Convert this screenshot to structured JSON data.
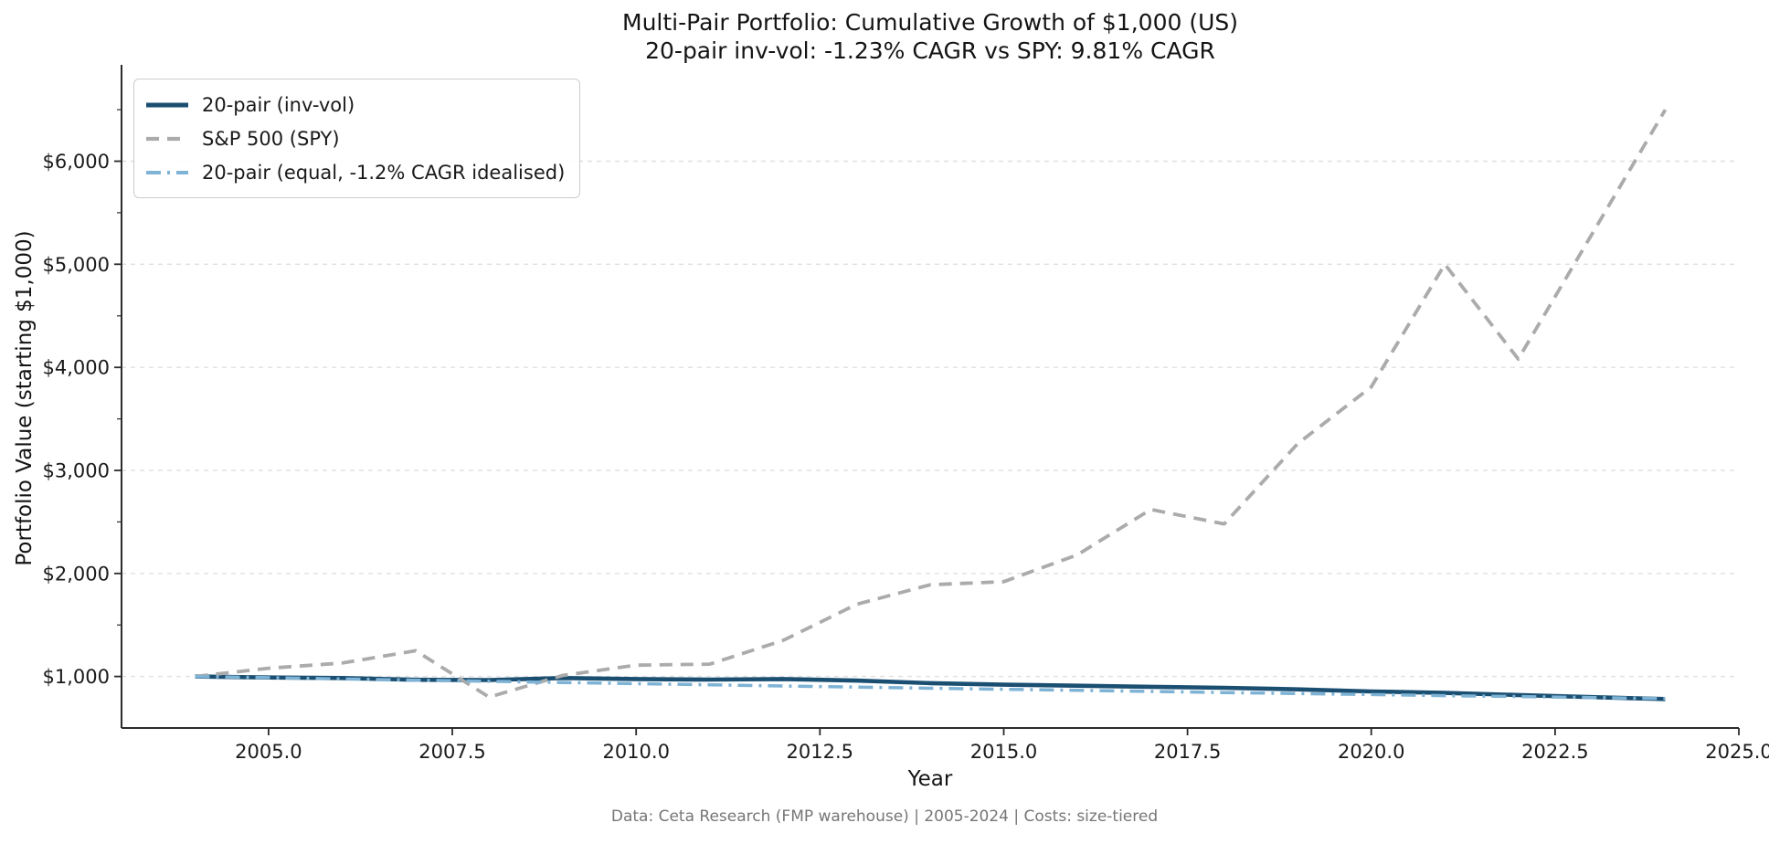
{
  "title": {
    "line1": "Multi-Pair Portfolio: Cumulative Growth of $1,000 (US)",
    "line2": "20-pair inv-vol: -1.23% CAGR vs SPY: 9.81% CAGR"
  },
  "footer": {
    "text": "Data: Ceta Research (FMP warehouse) | 2005-2024 | Costs: size-tiered"
  },
  "chart_data": {
    "type": "line",
    "title": "Multi-Pair Portfolio: Cumulative Growth of $1,000 (US)",
    "subtitle": "20-pair inv-vol: -1.23% CAGR vs SPY: 9.81% CAGR",
    "xlabel": "Year",
    "ylabel": "Portfolio Value (starting $1,000)",
    "grid": "horizontal-dashed",
    "legend_position": "upper-left",
    "xlim": [
      2003,
      2025
    ],
    "ylim": [
      500,
      6900
    ],
    "x": [
      2004,
      2005,
      2006,
      2007,
      2008,
      2009,
      2010,
      2011,
      2012,
      2013,
      2014,
      2015,
      2016,
      2017,
      2018,
      2019,
      2020,
      2021,
      2022,
      2023,
      2024
    ],
    "series": [
      {
        "name": "20-pair (inv-vol)",
        "color": "#1b4f72",
        "style": "solid",
        "width": 4.6,
        "values": [
          1000,
          990,
          985,
          968,
          965,
          985,
          975,
          970,
          975,
          960,
          935,
          920,
          910,
          900,
          890,
          875,
          855,
          840,
          820,
          800,
          781
        ]
      },
      {
        "name": "S&P 500 (SPY)",
        "color": "#ababab",
        "style": "dashed",
        "width": 3.8,
        "values": [
          1000,
          1080,
          1130,
          1250,
          800,
          1010,
          1110,
          1120,
          1350,
          1700,
          1890,
          1920,
          2180,
          2620,
          2480,
          3260,
          3810,
          5000,
          4080,
          5290,
          6500
        ]
      },
      {
        "name": "20-pair (equal, -1.2% CAGR idealised)",
        "color": "#7fb3d5",
        "style": "dashdot",
        "width": 3.5,
        "values": [
          1000,
          988,
          976,
          964,
          953,
          941,
          930,
          919,
          908,
          897,
          886,
          876,
          865,
          855,
          844,
          834,
          824,
          814,
          805,
          795,
          785
        ]
      }
    ],
    "xticks": [
      {
        "value": 2005.0,
        "label": "2005.0"
      },
      {
        "value": 2007.5,
        "label": "2007.5"
      },
      {
        "value": 2010.0,
        "label": "2010.0"
      },
      {
        "value": 2012.5,
        "label": "2012.5"
      },
      {
        "value": 2015.0,
        "label": "2015.0"
      },
      {
        "value": 2017.5,
        "label": "2017.5"
      },
      {
        "value": 2020.0,
        "label": "2020.0"
      },
      {
        "value": 2022.5,
        "label": "2022.5"
      },
      {
        "value": 2025.0,
        "label": "2025.0"
      }
    ],
    "yticks": [
      {
        "value": 1000,
        "label": "$1,000"
      },
      {
        "value": 2000,
        "label": "$2,000"
      },
      {
        "value": 3000,
        "label": "$3,000"
      },
      {
        "value": 4000,
        "label": "$4,000"
      },
      {
        "value": 5000,
        "label": "$5,000"
      },
      {
        "value": 6000,
        "label": "$6,000"
      }
    ],
    "yminorticks": [
      1500,
      2500,
      3500,
      4500,
      5500,
      6500
    ]
  },
  "legend": {
    "items": [
      {
        "label": "20-pair (inv-vol)"
      },
      {
        "label": "S&P 500 (SPY)"
      },
      {
        "label": "20-pair (equal, -1.2% CAGR idealised)"
      }
    ]
  }
}
